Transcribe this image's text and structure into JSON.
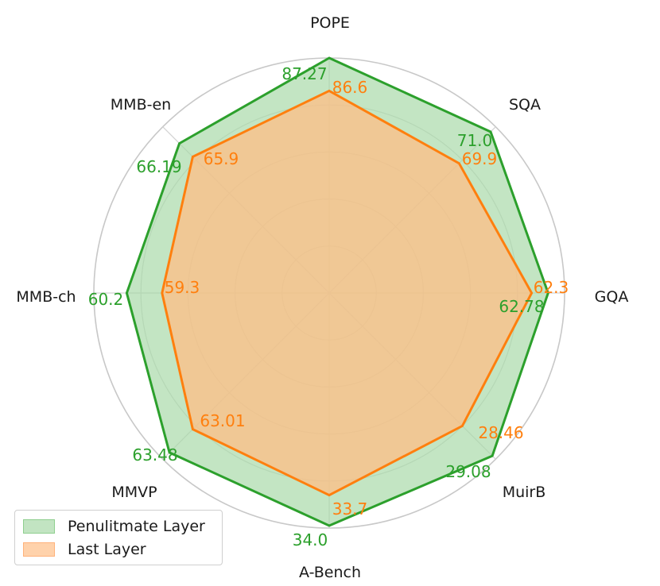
{
  "chart_data": {
    "type": "radar",
    "categories": [
      "POPE",
      "SQA",
      "GQA",
      "MuirB",
      "A-Bench",
      "MMVP",
      "MMB-ch",
      "MMB-en"
    ],
    "series": [
      {
        "name": "Penulitmate Layer",
        "values": [
          87.27,
          71.0,
          62.78,
          29.08,
          34.0,
          63.48,
          60.2,
          66.19
        ],
        "labels": [
          "87.27",
          "71.0",
          "62.78",
          "29.08",
          "34.0",
          "63.48",
          "60.2",
          "66.19"
        ],
        "color": "#2ca02c",
        "fill": "#a6d8a6"
      },
      {
        "name": "Last Layer",
        "values": [
          86.6,
          69.9,
          62.3,
          28.46,
          33.7,
          63.01,
          59.3,
          65.9
        ],
        "labels": [
          "86.6",
          "69.9",
          "62.3",
          "28.46",
          "33.7",
          "63.01",
          "59.3",
          "65.9"
        ],
        "color": "#ff7f0e",
        "fill": "#ffbe86"
      }
    ],
    "radial_fractions": {
      "Penulitmate Layer": [
        1.0,
        0.97,
        0.93,
        0.98,
        0.99,
        0.96,
        0.86,
        0.9
      ],
      "Last Layer": [
        0.86,
        0.78,
        0.86,
        0.8,
        0.86,
        0.82,
        0.71,
        0.82
      ]
    },
    "grid": true,
    "rings": 5,
    "legend_position": "bottom-left"
  }
}
